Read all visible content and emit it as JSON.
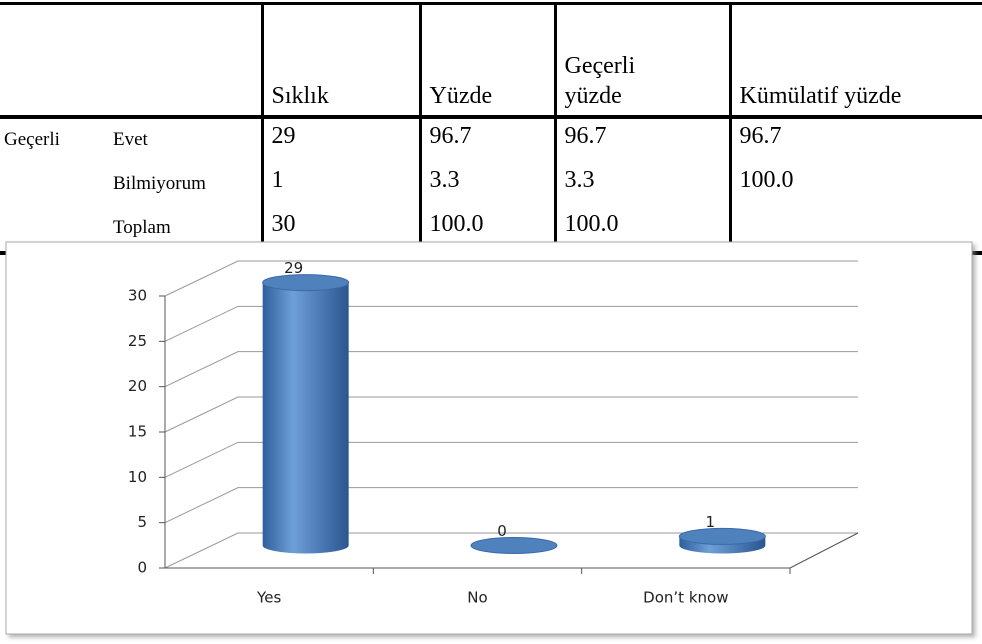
{
  "table": {
    "header": [
      "Sıklık",
      "Yüzde",
      "Geçerli yüzde",
      "Kümülatif yüzde"
    ],
    "rows": [
      {
        "group": "Geçerli",
        "label": "Evet",
        "cells": [
          "29",
          "96.7",
          "96.7",
          "96.7"
        ]
      },
      {
        "label": "Bilmiyorum",
        "cells": [
          "1",
          "3.3",
          "3.3",
          "100.0"
        ]
      },
      {
        "label": "Toplam",
        "cells": [
          "30",
          "100.0",
          "100.0"
        ]
      }
    ]
  },
  "chart_data": {
    "type": "bar",
    "categories": [
      "Yes",
      "No",
      "Don’t know"
    ],
    "values": [
      29,
      0,
      1
    ],
    "color": "#4f81bd",
    "ylim": [
      0,
      30
    ],
    "yticks": [
      0,
      5,
      10,
      15,
      20,
      25,
      30
    ],
    "grid": true
  }
}
